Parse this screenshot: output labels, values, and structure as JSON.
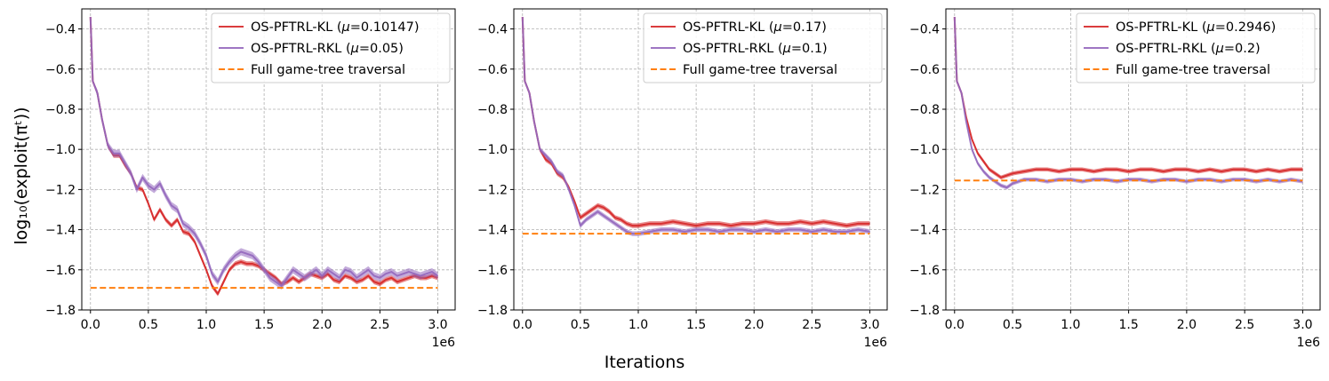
{
  "figure": {
    "xlabel": "Iterations",
    "ylabel": "log₁₀(exploit(πᵗ))",
    "offset_text": "1e6"
  },
  "colors": {
    "kl": "#d62728",
    "rkl": "#9467bd",
    "full": "#ff7f0e"
  },
  "chart_data": [
    {
      "type": "line",
      "title": "",
      "xlim": [
        -0.075,
        3.15
      ],
      "ylim": [
        -1.8,
        -0.3
      ],
      "x_ticks": [
        0.0,
        0.5,
        1.0,
        1.5,
        2.0,
        2.5,
        3.0
      ],
      "x_tick_labels": [
        "0.0",
        "0.5",
        "1.0",
        "1.5",
        "2.0",
        "2.5",
        "3.0"
      ],
      "y_ticks": [
        -0.4,
        -0.6,
        -0.8,
        -1.0,
        -1.2,
        -1.4,
        -1.6,
        -1.8
      ],
      "y_tick_labels": [
        "−0.4",
        "−0.6",
        "−0.8",
        "−1.0",
        "−1.2",
        "−1.4",
        "−1.6",
        "−1.8"
      ],
      "grid": true,
      "legend_position": "top-right",
      "series": [
        {
          "name": "OS-PFTRL-KL (μ=0.10147)",
          "legend_prefix": "OS-PFTRL-KL (",
          "legend_value": "=0.10147)",
          "color_key": "kl",
          "band_width": 0.012,
          "x": [
            0.0,
            0.02,
            0.06,
            0.1,
            0.15,
            0.2,
            0.25,
            0.3,
            0.35,
            0.4,
            0.45,
            0.5,
            0.55,
            0.6,
            0.65,
            0.7,
            0.75,
            0.8,
            0.85,
            0.9,
            0.95,
            1.0,
            1.05,
            1.1,
            1.15,
            1.2,
            1.25,
            1.3,
            1.35,
            1.4,
            1.45,
            1.5,
            1.55,
            1.6,
            1.65,
            1.7,
            1.75,
            1.8,
            1.85,
            1.9,
            1.95,
            2.0,
            2.05,
            2.1,
            2.15,
            2.2,
            2.25,
            2.3,
            2.35,
            2.4,
            2.45,
            2.5,
            2.55,
            2.6,
            2.65,
            2.7,
            2.75,
            2.8,
            2.85,
            2.9,
            2.95,
            3.0
          ],
          "y": [
            -0.34,
            -0.66,
            -0.72,
            -0.85,
            -0.98,
            -1.03,
            -1.03,
            -1.08,
            -1.12,
            -1.19,
            -1.2,
            -1.27,
            -1.35,
            -1.3,
            -1.35,
            -1.38,
            -1.35,
            -1.41,
            -1.42,
            -1.46,
            -1.53,
            -1.6,
            -1.68,
            -1.72,
            -1.66,
            -1.6,
            -1.57,
            -1.56,
            -1.57,
            -1.57,
            -1.58,
            -1.6,
            -1.62,
            -1.64,
            -1.67,
            -1.66,
            -1.64,
            -1.66,
            -1.64,
            -1.62,
            -1.63,
            -1.64,
            -1.62,
            -1.65,
            -1.66,
            -1.63,
            -1.64,
            -1.66,
            -1.65,
            -1.63,
            -1.66,
            -1.67,
            -1.65,
            -1.64,
            -1.66,
            -1.65,
            -1.64,
            -1.63,
            -1.64,
            -1.64,
            -1.63,
            -1.64
          ]
        },
        {
          "name": "OS-PFTRL-RKL (μ=0.05)",
          "legend_prefix": "OS-PFTRL-RKL (",
          "legend_value": "=0.05)",
          "color_key": "rkl",
          "band_width": 0.018,
          "x": [
            0.0,
            0.02,
            0.06,
            0.1,
            0.15,
            0.2,
            0.25,
            0.3,
            0.35,
            0.4,
            0.45,
            0.5,
            0.55,
            0.6,
            0.65,
            0.7,
            0.75,
            0.8,
            0.85,
            0.9,
            0.95,
            1.0,
            1.05,
            1.1,
            1.15,
            1.2,
            1.25,
            1.3,
            1.35,
            1.4,
            1.45,
            1.5,
            1.55,
            1.6,
            1.65,
            1.7,
            1.75,
            1.8,
            1.85,
            1.9,
            1.95,
            2.0,
            2.05,
            2.1,
            2.15,
            2.2,
            2.25,
            2.3,
            2.35,
            2.4,
            2.45,
            2.5,
            2.55,
            2.6,
            2.65,
            2.7,
            2.75,
            2.8,
            2.85,
            2.9,
            2.95,
            3.0
          ],
          "y": [
            -0.34,
            -0.66,
            -0.72,
            -0.85,
            -0.98,
            -1.02,
            -1.02,
            -1.07,
            -1.12,
            -1.2,
            -1.14,
            -1.18,
            -1.2,
            -1.17,
            -1.23,
            -1.28,
            -1.3,
            -1.37,
            -1.39,
            -1.42,
            -1.47,
            -1.53,
            -1.62,
            -1.66,
            -1.6,
            -1.56,
            -1.53,
            -1.51,
            -1.52,
            -1.53,
            -1.56,
            -1.6,
            -1.64,
            -1.66,
            -1.68,
            -1.64,
            -1.6,
            -1.62,
            -1.64,
            -1.62,
            -1.6,
            -1.63,
            -1.6,
            -1.62,
            -1.64,
            -1.6,
            -1.61,
            -1.64,
            -1.62,
            -1.6,
            -1.63,
            -1.64,
            -1.62,
            -1.61,
            -1.63,
            -1.62,
            -1.61,
            -1.62,
            -1.63,
            -1.62,
            -1.61,
            -1.63
          ]
        },
        {
          "name": "Full game-tree traversal",
          "legend_prefix": "Full game-tree traversal",
          "legend_value": "",
          "color_key": "full",
          "dashed": true,
          "x": [
            0.0,
            3.0
          ],
          "y": [
            -1.69,
            -1.69
          ]
        }
      ]
    },
    {
      "type": "line",
      "title": "",
      "xlim": [
        -0.075,
        3.15
      ],
      "ylim": [
        -1.8,
        -0.3
      ],
      "x_ticks": [
        0.0,
        0.5,
        1.0,
        1.5,
        2.0,
        2.5,
        3.0
      ],
      "x_tick_labels": [
        "0.0",
        "0.5",
        "1.0",
        "1.5",
        "2.0",
        "2.5",
        "3.0"
      ],
      "y_ticks": [
        -0.4,
        -0.6,
        -0.8,
        -1.0,
        -1.2,
        -1.4,
        -1.6,
        -1.8
      ],
      "y_tick_labels": [
        "−0.4",
        "−0.6",
        "−0.8",
        "−1.0",
        "−1.2",
        "−1.4",
        "−1.6",
        "−1.8"
      ],
      "grid": true,
      "legend_position": "top-right",
      "series": [
        {
          "name": "OS-PFTRL-KL (μ=0.17)",
          "legend_prefix": "OS-PFTRL-KL (",
          "legend_value": "=0.17)",
          "color_key": "kl",
          "band_width": 0.012,
          "x": [
            0.0,
            0.02,
            0.06,
            0.1,
            0.15,
            0.2,
            0.25,
            0.3,
            0.35,
            0.4,
            0.45,
            0.5,
            0.55,
            0.6,
            0.65,
            0.7,
            0.75,
            0.8,
            0.85,
            0.9,
            0.95,
            1.0,
            1.1,
            1.2,
            1.3,
            1.4,
            1.5,
            1.6,
            1.7,
            1.8,
            1.9,
            2.0,
            2.1,
            2.2,
            2.3,
            2.4,
            2.5,
            2.6,
            2.7,
            2.8,
            2.9,
            3.0
          ],
          "y": [
            -0.34,
            -0.66,
            -0.72,
            -0.86,
            -1.0,
            -1.05,
            -1.07,
            -1.12,
            -1.14,
            -1.19,
            -1.26,
            -1.34,
            -1.32,
            -1.3,
            -1.28,
            -1.29,
            -1.31,
            -1.34,
            -1.35,
            -1.37,
            -1.38,
            -1.38,
            -1.37,
            -1.37,
            -1.36,
            -1.37,
            -1.38,
            -1.37,
            -1.37,
            -1.38,
            -1.37,
            -1.37,
            -1.36,
            -1.37,
            -1.37,
            -1.36,
            -1.37,
            -1.36,
            -1.37,
            -1.38,
            -1.37,
            -1.37
          ]
        },
        {
          "name": "OS-PFTRL-RKL (μ=0.1)",
          "legend_prefix": "OS-PFTRL-RKL (",
          "legend_value": "=0.1)",
          "color_key": "rkl",
          "band_width": 0.012,
          "x": [
            0.0,
            0.02,
            0.06,
            0.1,
            0.15,
            0.2,
            0.25,
            0.3,
            0.35,
            0.4,
            0.45,
            0.5,
            0.55,
            0.6,
            0.65,
            0.7,
            0.75,
            0.8,
            0.85,
            0.9,
            0.95,
            1.0,
            1.1,
            1.2,
            1.3,
            1.4,
            1.5,
            1.6,
            1.7,
            1.8,
            1.9,
            2.0,
            2.1,
            2.2,
            2.3,
            2.4,
            2.5,
            2.6,
            2.7,
            2.8,
            2.9,
            3.0
          ],
          "y": [
            -0.34,
            -0.66,
            -0.72,
            -0.86,
            -1.0,
            -1.03,
            -1.06,
            -1.11,
            -1.13,
            -1.2,
            -1.28,
            -1.38,
            -1.35,
            -1.33,
            -1.31,
            -1.33,
            -1.35,
            -1.37,
            -1.39,
            -1.41,
            -1.42,
            -1.42,
            -1.41,
            -1.4,
            -1.4,
            -1.41,
            -1.4,
            -1.4,
            -1.41,
            -1.4,
            -1.4,
            -1.41,
            -1.4,
            -1.41,
            -1.4,
            -1.4,
            -1.41,
            -1.4,
            -1.41,
            -1.41,
            -1.4,
            -1.41
          ]
        },
        {
          "name": "Full game-tree traversal",
          "legend_prefix": "Full game-tree traversal",
          "legend_value": "",
          "color_key": "full",
          "dashed": true,
          "x": [
            0.0,
            3.0
          ],
          "y": [
            -1.42,
            -1.42
          ]
        }
      ]
    },
    {
      "type": "line",
      "title": "",
      "xlim": [
        -0.075,
        3.15
      ],
      "ylim": [
        -1.8,
        -0.3
      ],
      "x_ticks": [
        0.0,
        0.5,
        1.0,
        1.5,
        2.0,
        2.5,
        3.0
      ],
      "x_tick_labels": [
        "0.0",
        "0.5",
        "1.0",
        "1.5",
        "2.0",
        "2.5",
        "3.0"
      ],
      "y_ticks": [
        -0.4,
        -0.6,
        -0.8,
        -1.0,
        -1.2,
        -1.4,
        -1.6,
        -1.8
      ],
      "y_tick_labels": [
        "−0.4",
        "−0.6",
        "−0.8",
        "−1.0",
        "−1.2",
        "−1.4",
        "−1.6",
        "−1.8"
      ],
      "grid": true,
      "legend_position": "top-right",
      "series": [
        {
          "name": "OS-PFTRL-KL (μ=0.2946)",
          "legend_prefix": "OS-PFTRL-KL (",
          "legend_value": "=0.2946)",
          "color_key": "kl",
          "band_width": 0.01,
          "x": [
            0.0,
            0.02,
            0.06,
            0.1,
            0.15,
            0.2,
            0.25,
            0.3,
            0.35,
            0.4,
            0.45,
            0.5,
            0.6,
            0.7,
            0.8,
            0.9,
            1.0,
            1.1,
            1.2,
            1.3,
            1.4,
            1.5,
            1.6,
            1.7,
            1.8,
            1.9,
            2.0,
            2.1,
            2.2,
            2.3,
            2.4,
            2.5,
            2.6,
            2.7,
            2.8,
            2.9,
            3.0
          ],
          "y": [
            -0.34,
            -0.66,
            -0.72,
            -0.84,
            -0.95,
            -1.02,
            -1.06,
            -1.1,
            -1.12,
            -1.14,
            -1.13,
            -1.12,
            -1.11,
            -1.1,
            -1.1,
            -1.11,
            -1.1,
            -1.1,
            -1.11,
            -1.1,
            -1.1,
            -1.11,
            -1.1,
            -1.1,
            -1.11,
            -1.1,
            -1.1,
            -1.11,
            -1.1,
            -1.11,
            -1.1,
            -1.1,
            -1.11,
            -1.1,
            -1.11,
            -1.1,
            -1.1
          ]
        },
        {
          "name": "OS-PFTRL-RKL (μ=0.2)",
          "legend_prefix": "OS-PFTRL-RKL (",
          "legend_value": "=0.2)",
          "color_key": "rkl",
          "band_width": 0.01,
          "x": [
            0.0,
            0.02,
            0.06,
            0.1,
            0.15,
            0.2,
            0.25,
            0.3,
            0.35,
            0.4,
            0.45,
            0.5,
            0.6,
            0.7,
            0.8,
            0.9,
            1.0,
            1.1,
            1.2,
            1.3,
            1.4,
            1.5,
            1.6,
            1.7,
            1.8,
            1.9,
            2.0,
            2.1,
            2.2,
            2.3,
            2.4,
            2.5,
            2.6,
            2.7,
            2.8,
            2.9,
            3.0
          ],
          "y": [
            -0.34,
            -0.66,
            -0.72,
            -0.86,
            -1.0,
            -1.07,
            -1.11,
            -1.14,
            -1.16,
            -1.18,
            -1.19,
            -1.17,
            -1.15,
            -1.15,
            -1.16,
            -1.15,
            -1.15,
            -1.16,
            -1.15,
            -1.15,
            -1.16,
            -1.15,
            -1.15,
            -1.16,
            -1.15,
            -1.15,
            -1.16,
            -1.15,
            -1.15,
            -1.16,
            -1.15,
            -1.15,
            -1.16,
            -1.15,
            -1.16,
            -1.15,
            -1.16
          ]
        },
        {
          "name": "Full game-tree traversal",
          "legend_prefix": "Full game-tree traversal",
          "legend_value": "",
          "color_key": "full",
          "dashed": true,
          "x": [
            0.0,
            3.0
          ],
          "y": [
            -1.155,
            -1.155
          ]
        }
      ]
    }
  ]
}
